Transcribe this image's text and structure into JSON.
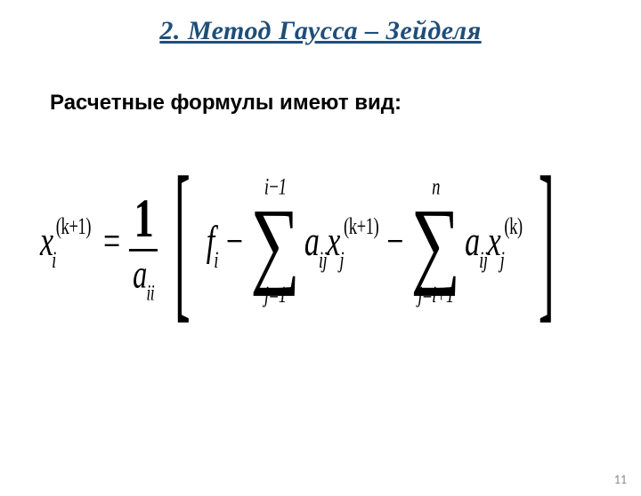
{
  "title": {
    "text": "2. Метод Гаусса – Зейделя",
    "color": "#1f4e79",
    "fontsize": 30
  },
  "subtitle": {
    "text": "Расчетные формулы имеют вид:",
    "color": "#000000",
    "fontsize": 24
  },
  "formula": {
    "fontsize": 34,
    "color": "#000000",
    "lhs_var": "x",
    "lhs_sub": "i",
    "lhs_sup": "(k+1)",
    "eq": "=",
    "frac_num": "1",
    "frac_den_a": "a",
    "frac_den_sub": "ii",
    "lbracket": "[",
    "rbracket": "]",
    "f": "f",
    "f_sub": "i",
    "minus": "−",
    "sum1_top": "i−1",
    "sum1_bot": "j=1",
    "sigma": "∑",
    "a": "a",
    "a_sub": "ij",
    "x": "x",
    "x_sub": "j",
    "x1_sup": "(k+1)",
    "sum2_top": "n",
    "sum2_bot": "j=i+1",
    "x2_sup": "(k)"
  },
  "pagenum": {
    "text": "11",
    "color": "#8a8a8a",
    "fontsize": 14
  }
}
